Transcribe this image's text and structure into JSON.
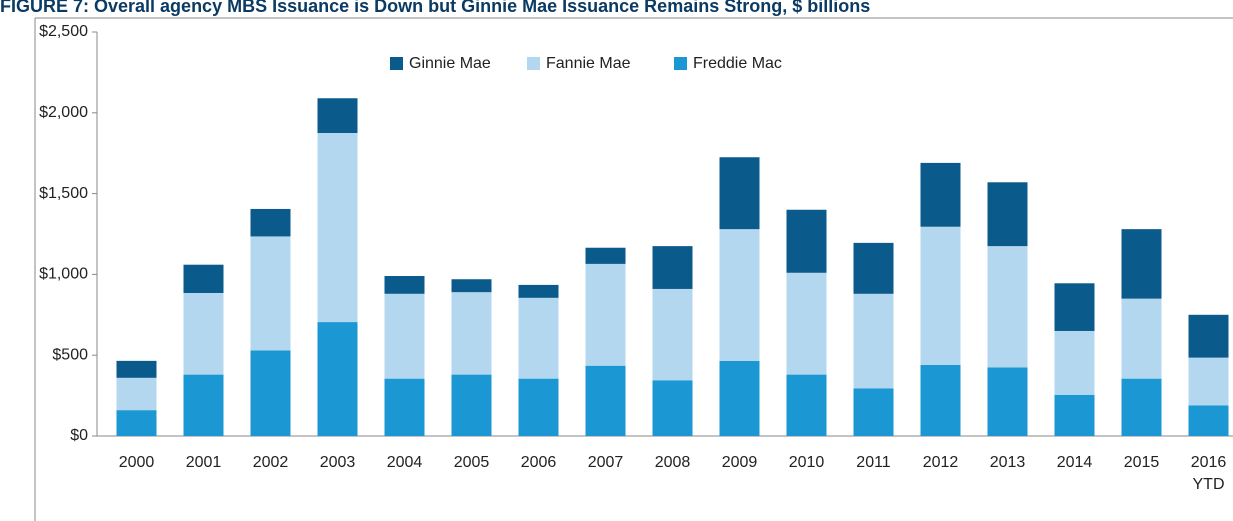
{
  "chart_data": {
    "type": "stacked_bar",
    "title": "FIGURE 7: Overall agency MBS Issuance is Down but Ginnie Mae Issuance Remains Strong, $ billions",
    "categories": [
      "2000",
      "2001",
      "2002",
      "2003",
      "2004",
      "2005",
      "2006",
      "2007",
      "2008",
      "2009",
      "2010",
      "2011",
      "2012",
      "2013",
      "2014",
      "2015",
      "2016 YTD"
    ],
    "series": [
      {
        "name": "Freddie Mac",
        "color": "#1b98d3",
        "values": [
          160,
          380,
          530,
          705,
          355,
          380,
          355,
          435,
          345,
          465,
          380,
          295,
          440,
          425,
          255,
          355,
          190
        ]
      },
      {
        "name": "Fannie Mae",
        "color": "#b3d7ef",
        "values": [
          200,
          505,
          705,
          1170,
          525,
          510,
          500,
          630,
          565,
          815,
          630,
          585,
          855,
          750,
          395,
          495,
          295
        ]
      },
      {
        "name": "Ginnie Mae",
        "color": "#0a5a8c",
        "values": [
          105,
          175,
          170,
          215,
          110,
          80,
          80,
          100,
          265,
          445,
          390,
          315,
          395,
          395,
          295,
          430,
          265
        ]
      }
    ],
    "ylim": [
      0,
      2500
    ],
    "yticks": [
      {
        "value": 0,
        "label": "$0"
      },
      {
        "value": 500,
        "label": "$500"
      },
      {
        "value": 1000,
        "label": "$1,000"
      },
      {
        "value": 1500,
        "label": "$1,500"
      },
      {
        "value": 2000,
        "label": "$2,000"
      },
      {
        "value": 2500,
        "label": "$2,500"
      }
    ],
    "legend": "top"
  }
}
